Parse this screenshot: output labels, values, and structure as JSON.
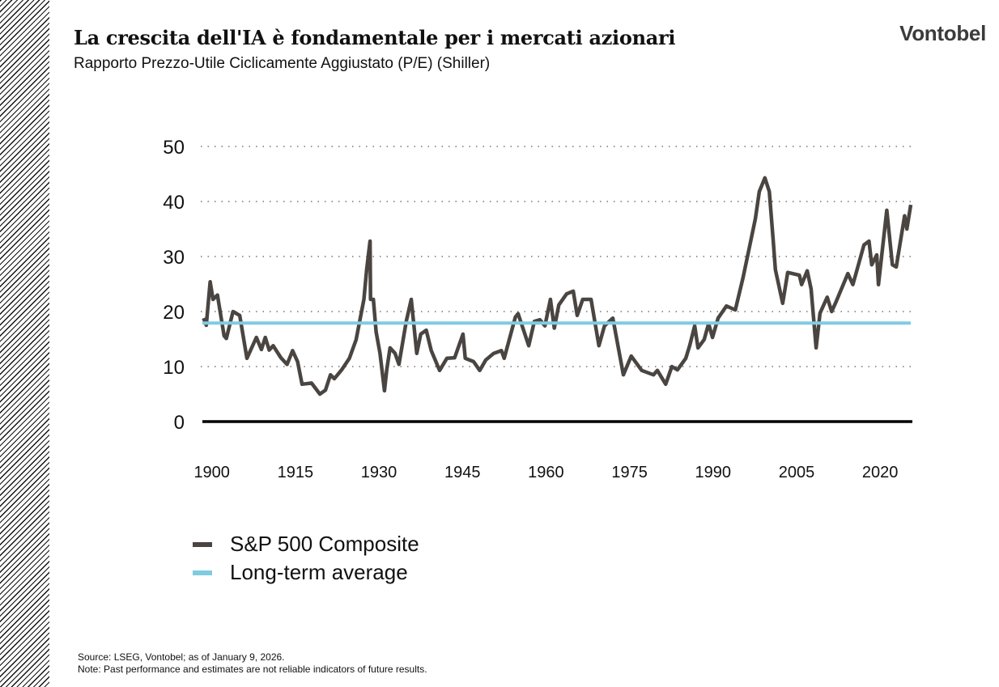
{
  "header": {
    "title": "La crescita dell'IA è fondamentale per i mercati azionari",
    "subtitle": "Rapporto Prezzo-Utile Ciclicamente Aggiustato (P/E) (Shiller)",
    "logo": "Vontobel"
  },
  "chart_data": {
    "type": "line",
    "title": "",
    "xlabel": "",
    "ylabel": "",
    "xlim": [
      1898.3,
      2025.5
    ],
    "ylim": [
      0,
      50
    ],
    "x_ticks": [
      "1900",
      "1915",
      "1930",
      "1945",
      "1960",
      "1975",
      "1990",
      "2005",
      "2020"
    ],
    "y_ticks": [
      "0",
      "10",
      "20",
      "30",
      "40",
      "50"
    ],
    "grid": "horizontal dotted",
    "legend_position": "bottom-left",
    "series": [
      {
        "name": "S&P 500 Composite",
        "color": "#4a4541",
        "x": [
          1898.5,
          1899,
          1899.7,
          1900.2,
          1901,
          1902.2,
          1902.6,
          1903.8,
          1905,
          1906.3,
          1908,
          1908.9,
          1909.6,
          1910.3,
          1911,
          1912.4,
          1913.5,
          1914.5,
          1915.4,
          1916.2,
          1917.9,
          1919.4,
          1920.4,
          1921.3,
          1922,
          1923.3,
          1924.7,
          1925.9,
          1927.3,
          1927.8,
          1928.4,
          1928.5,
          1929,
          1929.5,
          1930.2,
          1931,
          1931.4,
          1932,
          1932.9,
          1933.6,
          1934.9,
          1935.8,
          1936.8,
          1937.5,
          1938.5,
          1939.4,
          1940.9,
          1942.2,
          1943.6,
          1945.1,
          1945.5,
          1947,
          1948.1,
          1949.2,
          1950.6,
          1952,
          1952.5,
          1954.5,
          1955,
          1956.9,
          1957.9,
          1958.9,
          1959.8,
          1960.8,
          1961.5,
          1962.3,
          1963.7,
          1964.9,
          1965.6,
          1966.6,
          1968.1,
          1969.5,
          1970.5,
          1972,
          1973.9,
          1975.3,
          1977.2,
          1979.3,
          1980,
          1981.5,
          1982.6,
          1983.6,
          1985.1,
          1985.8,
          1986.7,
          1987.3,
          1988.4,
          1989.2,
          1989.9,
          1990.9,
          1992.4,
          1994,
          1995.4,
          1996.9,
          1997.6,
          1998.3,
          1999.3,
          2000.1,
          2000.8,
          2001.2,
          2002.5,
          2003.4,
          2005.5,
          2005.9,
          2006.9,
          2007.6,
          2008.5,
          2009.2,
          2010.5,
          2011.3,
          2012.1,
          2014.2,
          2015.1,
          2017.1,
          2018,
          2018.5,
          2019.4,
          2019.7,
          2021.2,
          2022.2,
          2022.9,
          2024.4,
          2024.8,
          2025.5
        ],
        "y": [
          18.8,
          17.5,
          25.4,
          22.2,
          23,
          15.6,
          15.1,
          20,
          19.3,
          11.5,
          15.3,
          13.1,
          15.3,
          13,
          13.8,
          11.6,
          10.4,
          12.9,
          10.9,
          6.8,
          7,
          5,
          5.7,
          8.5,
          7.8,
          9.4,
          11.5,
          14.9,
          22.2,
          27.6,
          32.8,
          22.2,
          22.2,
          16.3,
          12.4,
          5.6,
          9.4,
          13.4,
          12.4,
          10.4,
          18.2,
          22.2,
          12.4,
          15.9,
          16.6,
          12.9,
          9.3,
          11.5,
          11.6,
          15.9,
          11.5,
          10.9,
          9.3,
          11.2,
          12.4,
          12.9,
          11.5,
          19,
          19.6,
          13.8,
          18.2,
          18.5,
          17.4,
          22.2,
          17,
          21.2,
          23.2,
          23.7,
          19.3,
          22.2,
          22.2,
          13.8,
          17.4,
          18.8,
          8.5,
          11.9,
          9.3,
          8.5,
          9.3,
          6.8,
          10,
          9.4,
          11.5,
          13.8,
          17.4,
          13.4,
          14.9,
          17.8,
          15.3,
          18.8,
          21,
          20.3,
          26.2,
          33.5,
          36.9,
          41.8,
          44.3,
          41.8,
          32.9,
          27.6,
          21.5,
          27.1,
          26.6,
          24.9,
          27.4,
          24.1,
          13.4,
          19.7,
          22.6,
          20,
          21.8,
          26.9,
          24.9,
          32.1,
          32.8,
          28.5,
          30.3,
          24.9,
          38.4,
          28.5,
          28.1,
          37.4,
          35,
          39.4
        ]
      },
      {
        "name": "Long-term average",
        "color": "#7fcce0",
        "x": [
          1898.3,
          2025.5
        ],
        "y": [
          17.9,
          17.9
        ]
      }
    ]
  },
  "footer": {
    "source": "Source: LSEG, Vontobel; as of January 9, 2026.",
    "note": "Note: Past performance and estimates are not reliable indicators of future results."
  }
}
